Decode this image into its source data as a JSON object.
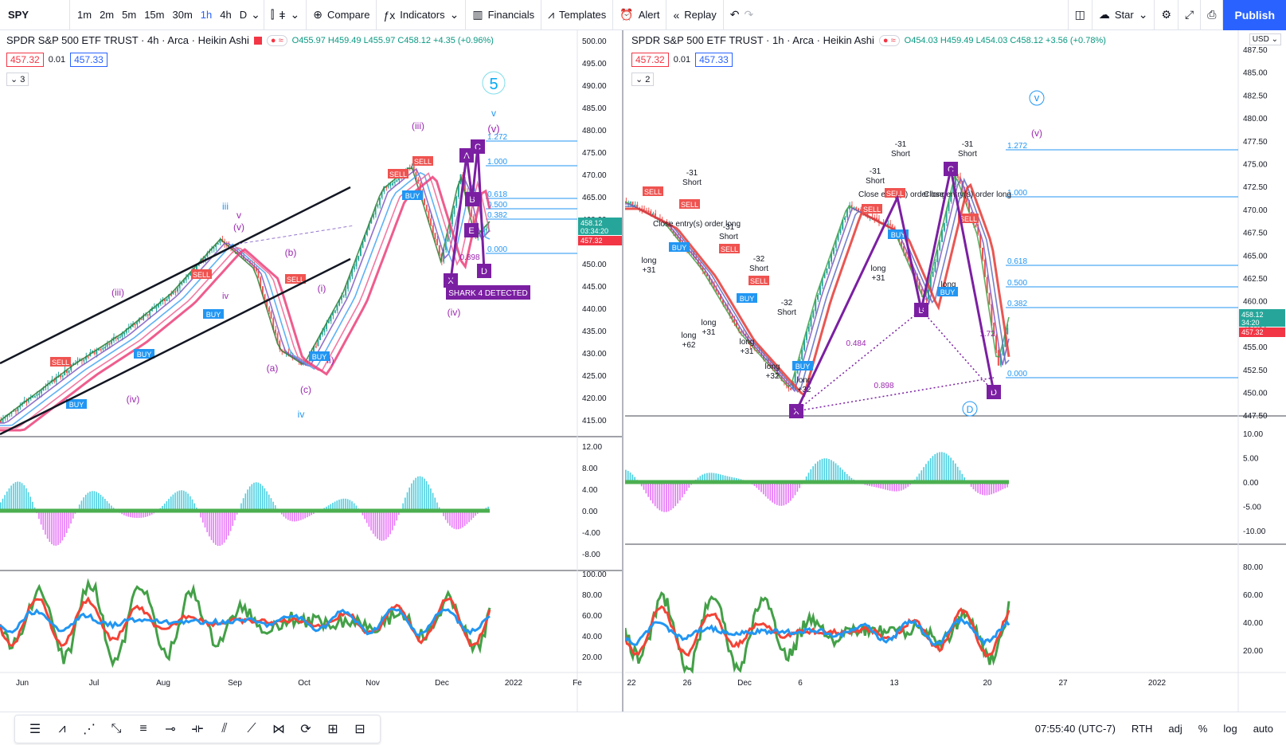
{
  "toolbar": {
    "symbol": "SPY",
    "intervals": [
      "1m",
      "2m",
      "5m",
      "15m",
      "30m",
      "1h",
      "4h",
      "D"
    ],
    "active_interval": "1h",
    "compare_label": "Compare",
    "indicators_label": "Indicators",
    "financials_label": "Financials",
    "templates_label": "Templates",
    "alert_label": "Alert",
    "replay_label": "Replay",
    "layout_name": "Star",
    "publish_label": "Publish",
    "icons": [
      "chart-type-icon",
      "bar-style-icon",
      "plus-circle-icon",
      "fx-icon",
      "financials-icon",
      "templates-icon",
      "alert-icon",
      "replay-icon",
      "undo-icon",
      "redo-icon",
      "layout-icon",
      "cloud-icon",
      "gear-icon",
      "fullscreen-icon",
      "camera-icon"
    ]
  },
  "left_chart": {
    "title": "SPDR S&P 500 ETF TRUST · 4h · Arca · Heikin Ashi",
    "ohlc": {
      "o": "O455.97",
      "h": "H459.49",
      "l": "L455.97",
      "c": "C458.12",
      "chg": "+4.35 (+0.96%)"
    },
    "bid": "457.32",
    "spread": "0.01",
    "ask": "457.33",
    "collapse_count": "3",
    "price_axis": [
      "500.00",
      "495.00",
      "490.00",
      "485.00",
      "480.00",
      "475.00",
      "470.00",
      "465.00",
      "460.00",
      "455.00",
      "450.00",
      "445.00",
      "440.00",
      "435.00",
      "430.00",
      "425.00",
      "420.00",
      "415.00"
    ],
    "last_price": "458.12",
    "countdown": "03:34:20",
    "bid_tag": "457.32",
    "macd_axis": [
      "12.00",
      "8.00",
      "4.00",
      "0.00",
      "-4.00",
      "-8.00"
    ],
    "rsi_axis": [
      "100.00",
      "80.00",
      "60.00",
      "40.00",
      "20.00"
    ],
    "time_axis": [
      "Jun",
      "Jul",
      "Aug",
      "Sep",
      "Oct",
      "Nov",
      "Dec",
      "2022",
      "Fe"
    ],
    "fib_labels": [
      "1.272",
      "1.000",
      "0.618",
      "0.500",
      "0.382",
      "0.000"
    ],
    "wave_labels": [
      "5",
      "v",
      "(v)",
      "(iii)",
      "iii",
      "v",
      "(v)",
      "(b)",
      "(iii)",
      "(iv)",
      "(a)",
      "(c)",
      "(i)",
      "ii)",
      "iv",
      "(iv)"
    ],
    "pattern_labels": [
      "A",
      "C",
      "B",
      "X",
      "D",
      "E"
    ],
    "shark_label": "SHARK 4 DETECTED",
    "ratio_label": "0.898",
    "signals": [
      "SELL",
      "SELL",
      "SELL",
      "SELL",
      "SELL",
      "BUY",
      "BUY",
      "BUY",
      "BUY",
      "BUY"
    ]
  },
  "right_chart": {
    "title": "SPDR S&P 500 ETF TRUST · 1h · Arca · Heikin Ashi",
    "ohlc": {
      "o": "O454.03",
      "h": "H459.49",
      "l": "L454.03",
      "c": "C458.12",
      "chg": "+3.56 (+0.78%)"
    },
    "bid": "457.32",
    "spread": "0.01",
    "ask": "457.33",
    "collapse_count": "2",
    "currency": "USD",
    "price_axis": [
      "487.50",
      "485.00",
      "482.50",
      "480.00",
      "477.50",
      "475.00",
      "472.50",
      "470.00",
      "467.50",
      "465.00",
      "462.50",
      "460.00",
      "457.50",
      "455.00",
      "452.50",
      "450.00",
      "447.50"
    ],
    "last_price": "458.12",
    "countdown": "34:20",
    "bid_tag": "457.32",
    "macd_axis": [
      "10.00",
      "5.00",
      "0.00",
      "-5.00",
      "-10.00"
    ],
    "rsi_axis": [
      "80.00",
      "60.00",
      "40.00",
      "20.00"
    ],
    "time_axis": [
      "22",
      "26",
      "Dec",
      "6",
      "13",
      "20",
      "27",
      "2022"
    ],
    "fib_labels": [
      "1.272",
      "1.000",
      "0.618",
      "0.500",
      "0.382",
      "0.000"
    ],
    "ratio_labels": [
      "0.484",
      "0.898",
      "1.72"
    ],
    "wave_labels": [
      "v",
      "(v)",
      "D"
    ],
    "pattern_labels": [
      "X",
      "B",
      "C",
      "D"
    ],
    "short_labels": [
      "-31",
      "Short",
      "-31",
      "Short",
      "-31",
      "Short",
      "-32",
      "Short",
      "-32",
      "Short",
      "-31",
      "Short",
      "-31",
      "Short"
    ],
    "long_labels": [
      "long",
      "+31",
      "long",
      "+62",
      "long",
      "+31",
      "long",
      "+31",
      "long",
      "+32",
      "long",
      "+32",
      "long",
      "+31",
      "long",
      "+62"
    ],
    "order_labels": [
      "Close entry(s) order long",
      "Close entry(s) order long",
      "Close entry(s) order long"
    ]
  },
  "bottombar": {
    "time": "07:55:40 (UTC-7)",
    "session": "RTH",
    "adj": "adj",
    "percent": "%",
    "log": "log",
    "auto": "auto",
    "tools": [
      "cursor-icon",
      "lines-icon",
      "fib-icon",
      "pattern-icon",
      "path-icon",
      "channel-icon",
      "horizontal-line-icon",
      "bars-icon",
      "trend-line-icon",
      "xabcd-icon",
      "curve-icon",
      "ruler-icon",
      "long-position-icon"
    ]
  }
}
